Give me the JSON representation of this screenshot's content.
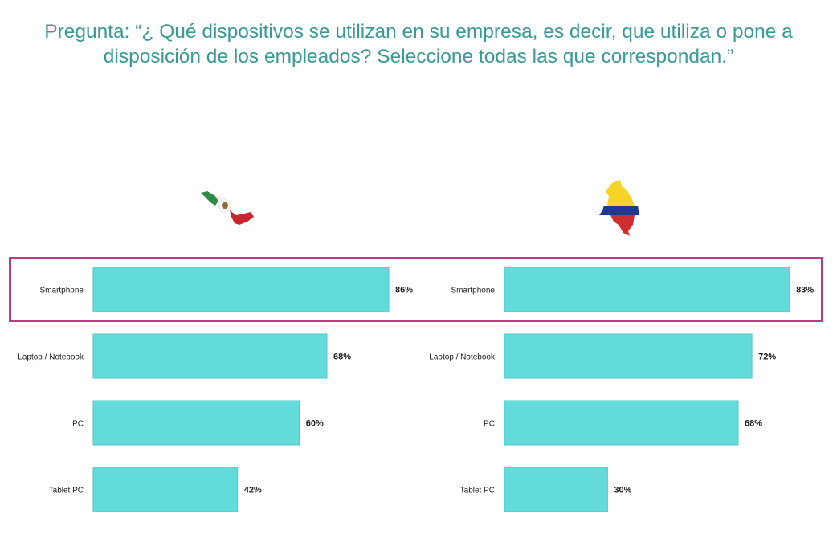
{
  "title": "Pregunta: “¿ Qué dispositivos se utilizan en su empresa, es decir, que utiliza o pone a disposición de los empleados? Seleccione todas las que correspondan.”",
  "colors": {
    "title": "#3a9a96",
    "bar": "#63dbdb",
    "bar_stroke": "#4ec9c9",
    "highlight": "#c2377f"
  },
  "highlight_category": "Smartphone",
  "chart_data": [
    {
      "type": "bar",
      "orientation": "horizontal",
      "country_icon": "mexico-map-flag-icon",
      "categories": [
        "Smartphone",
        "Laptop / Notebook",
        "PC",
        "Tablet PC"
      ],
      "values": [
        86,
        68,
        60,
        42
      ],
      "value_labels": [
        "86%",
        "68%",
        "60%",
        "42%"
      ],
      "unit": "%",
      "xlim": [
        0,
        100
      ]
    },
    {
      "type": "bar",
      "orientation": "horizontal",
      "country_icon": "colombia-map-flag-icon",
      "categories": [
        "Smartphone",
        "Laptop / Notebook",
        "PC",
        "Tablet PC"
      ],
      "values": [
        83,
        72,
        68,
        30
      ],
      "value_labels": [
        "83%",
        "72%",
        "68%",
        "30%"
      ],
      "unit": "%",
      "xlim": [
        0,
        100
      ]
    }
  ]
}
